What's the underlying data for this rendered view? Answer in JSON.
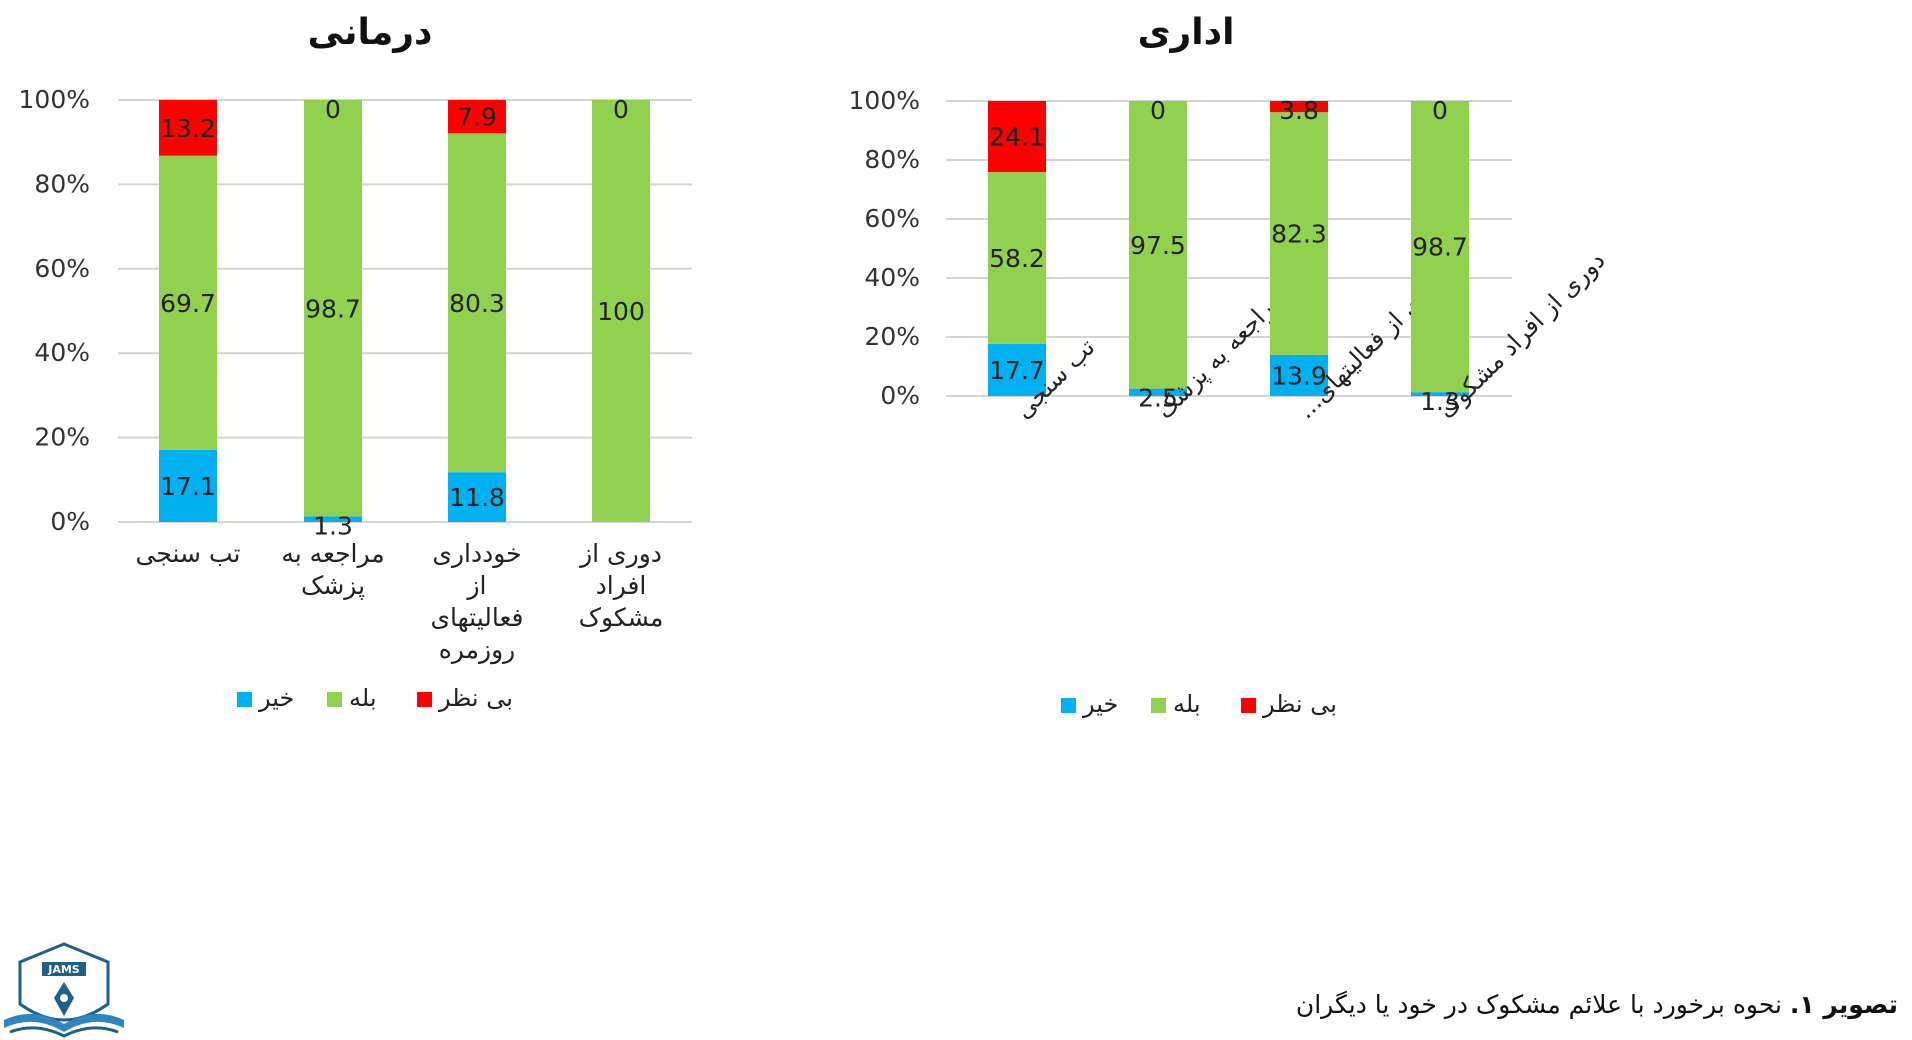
{
  "figure": {
    "caption_label": "تصویر ۱.",
    "caption_text": " نحوه برخورد با علائم مشکوک در خود یا دیگران",
    "logo_text": "JAMS"
  },
  "chart_data": [
    {
      "type": "bar",
      "stacked": true,
      "title": "درمانی",
      "categories": [
        "تب سنجی",
        "مراجعه به پزشک",
        "خودداری از فعالیتهای روزمره",
        "دوری از افراد مشکوک"
      ],
      "category_lines": [
        [
          "تب سنجی"
        ],
        [
          "مراجعه به",
          "پزشک"
        ],
        [
          "خودداری",
          "از",
          "فعالیتهای",
          "روزمره"
        ],
        [
          "دوری از",
          "افراد",
          "مشکوک"
        ]
      ],
      "series": [
        {
          "name": "خیر",
          "color": "#00B0F0",
          "values": [
            17.1,
            1.3,
            11.8,
            0
          ]
        },
        {
          "name": "بله",
          "color": "#92D050",
          "values": [
            69.7,
            98.7,
            80.3,
            100
          ]
        },
        {
          "name": "بی نظر",
          "color": "#FF0000",
          "values": [
            13.2,
            0,
            7.9,
            0
          ]
        }
      ],
      "y_ticks": [
        "0%",
        "20%",
        "40%",
        "60%",
        "80%",
        "100%"
      ],
      "ylim": [
        0,
        100
      ],
      "grid": true,
      "legend": "bottom"
    },
    {
      "type": "bar",
      "stacked": true,
      "title": "اداری",
      "categories": [
        "تب سنجی",
        "مراجعه به پزشک",
        "خودداری از فعالیتهای...",
        "دوری از افراد مشکوک"
      ],
      "series": [
        {
          "name": "خیر",
          "color": "#00B0F0",
          "values": [
            17.7,
            2.5,
            13.9,
            1.3
          ]
        },
        {
          "name": "بله",
          "color": "#92D050",
          "values": [
            58.2,
            97.5,
            82.3,
            98.7
          ]
        },
        {
          "name": "بی نظر",
          "color": "#FF0000",
          "values": [
            24.1,
            0,
            3.8,
            0
          ]
        }
      ],
      "y_ticks": [
        "0%",
        "20%",
        "40%",
        "60%",
        "80%",
        "100%"
      ],
      "ylim": [
        0,
        100
      ],
      "grid": true,
      "legend": "bottom",
      "rotated_labels": true
    }
  ]
}
